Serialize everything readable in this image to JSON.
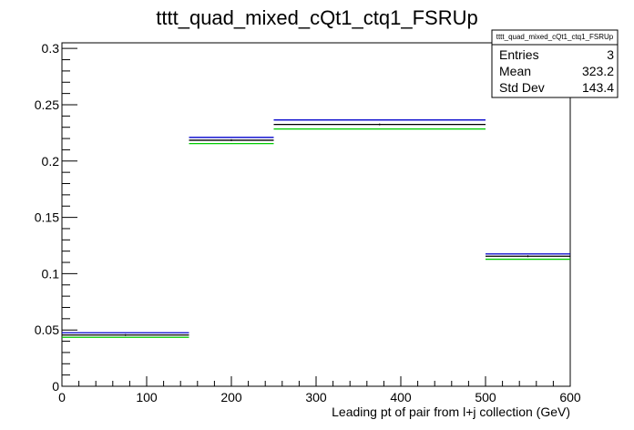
{
  "chart_data": {
    "type": "histogram",
    "title": "tttt_quad_mixed_cQt1_ctq1_FSRUp",
    "xlabel": "Leading pt of pair from l+j collection (GeV)",
    "ylabel": "",
    "xlim": [
      0,
      600
    ],
    "ylim": [
      0,
      0.305
    ],
    "x_ticks": [
      0,
      100,
      200,
      300,
      400,
      500,
      600
    ],
    "x_tick_labels": [
      "0",
      "100",
      "200",
      "300",
      "400",
      "500",
      "600"
    ],
    "y_ticks": [
      0,
      0.05,
      0.1,
      0.15,
      0.2,
      0.25,
      0.3
    ],
    "y_tick_labels": [
      "0",
      "0.05",
      "0.1",
      "0.15",
      "0.2",
      "0.25",
      "0.3"
    ],
    "grid": false,
    "bin_edges": [
      0,
      150,
      250,
      500,
      600
    ],
    "series": [
      {
        "color": "#000000",
        "values": [
          0.0455,
          0.2185,
          0.2325,
          0.1155
        ]
      },
      {
        "color": "#0000cc",
        "values": [
          0.0475,
          0.221,
          0.2365,
          0.1175
        ]
      },
      {
        "color": "#00cc00",
        "values": [
          0.0435,
          0.2155,
          0.2285,
          0.1128
        ]
      }
    ],
    "stats_box": {
      "title": "tttt_quad_mixed_cQt1_ctq1_FSRUp",
      "rows": [
        {
          "label": "Entries",
          "value": "3"
        },
        {
          "label": "Mean",
          "value": "323.2"
        },
        {
          "label": "Std Dev",
          "value": "143.4"
        }
      ]
    }
  }
}
